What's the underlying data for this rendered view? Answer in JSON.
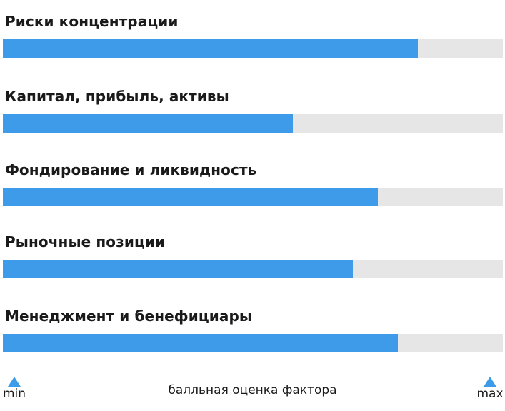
{
  "chart_data": {
    "type": "bar",
    "orientation": "horizontal",
    "categories": [
      "Риски концентрации",
      "Капитал, прибыль, активы",
      "Фондирование и ликвидность",
      "Рыночные позиции",
      "Менеджмент и бенефициары"
    ],
    "values": [
      0.83,
      0.58,
      0.75,
      0.7,
      0.79
    ],
    "value_unit": "fraction of scale (min to max)",
    "scale": {
      "min_label": "min",
      "max_label": "max",
      "caption": "балльная оценка фактора"
    },
    "grid": false,
    "legend": "none"
  },
  "colors": {
    "bar_fill": "#3d9be9",
    "track": "#e6e6e6",
    "text": "#1a1a1a"
  },
  "icons": {
    "min_marker": "triangle-up-icon",
    "max_marker": "triangle-up-icon"
  }
}
